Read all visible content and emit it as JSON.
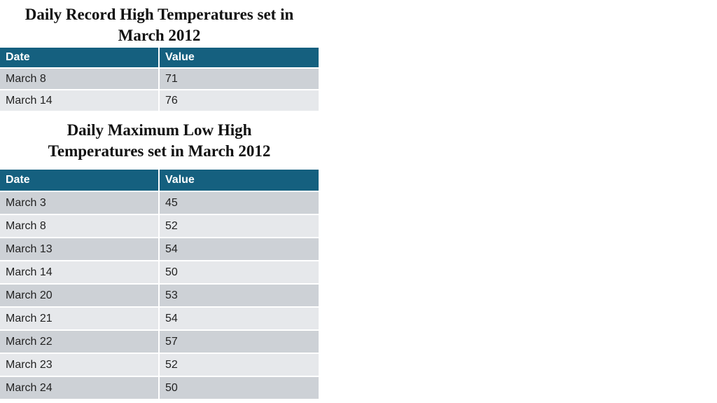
{
  "tables": [
    {
      "title": "Daily Record High Temperatures set in March 2012",
      "header": [
        "Date",
        "Value"
      ],
      "rows": [
        [
          "March 8",
          71
        ],
        [
          "March 14",
          76
        ]
      ]
    },
    {
      "title": "Daily Maximum Low High Temperatures set in March 2012",
      "header": [
        "Date",
        "Value"
      ],
      "rows": [
        [
          "March 3",
          45
        ],
        [
          "March 8",
          52
        ],
        [
          "March 13",
          54
        ],
        [
          "March 14",
          50
        ],
        [
          "March 20",
          53
        ],
        [
          "March 21",
          54
        ],
        [
          "March 22",
          57
        ],
        [
          "March 23",
          52
        ],
        [
          "March 24",
          50
        ]
      ]
    }
  ]
}
